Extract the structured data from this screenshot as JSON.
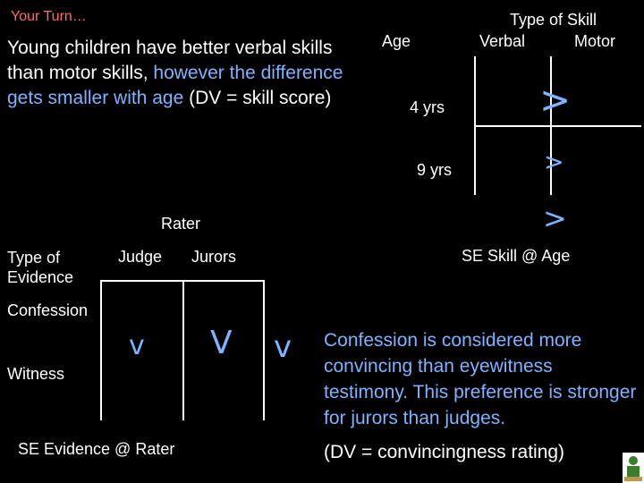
{
  "slide": {
    "title": "Your Turn…",
    "problem": {
      "part1": "Young children have better verbal skills than motor skills, ",
      "part2": "however the difference gets smaller with age",
      "part3": " (DV = skill score)"
    },
    "skill_table": {
      "header": "Type of Skill",
      "col1": "Verbal",
      "col2": "Motor",
      "row_header": "Age",
      "row1": "4 yrs",
      "row2": "9 yrs",
      "symbol_large": ">",
      "symbol_small": ">",
      "symbol_bottom": ">",
      "se_label": "SE Skill @ Age"
    },
    "evidence_table": {
      "header": "Rater",
      "col1": "Judge",
      "col2": "Jurors",
      "row_header_line1": "Type of",
      "row_header_line2": "Evidence",
      "row1": "Confession",
      "row2": "Witness",
      "symbol_small": "v",
      "symbol_large": "V",
      "symbol_right": "v",
      "se_label": "SE Evidence @ Rater"
    },
    "description": "Confession is considered more convincing than eyewitness testimony.  This preference is stronger for jurors than judges.",
    "dv_note": "(DV = convincingness rating)"
  },
  "colors": {
    "background": "#000000",
    "text": "#ffffff",
    "accent": "#7fb2ff",
    "title": "#ff6b6b"
  }
}
